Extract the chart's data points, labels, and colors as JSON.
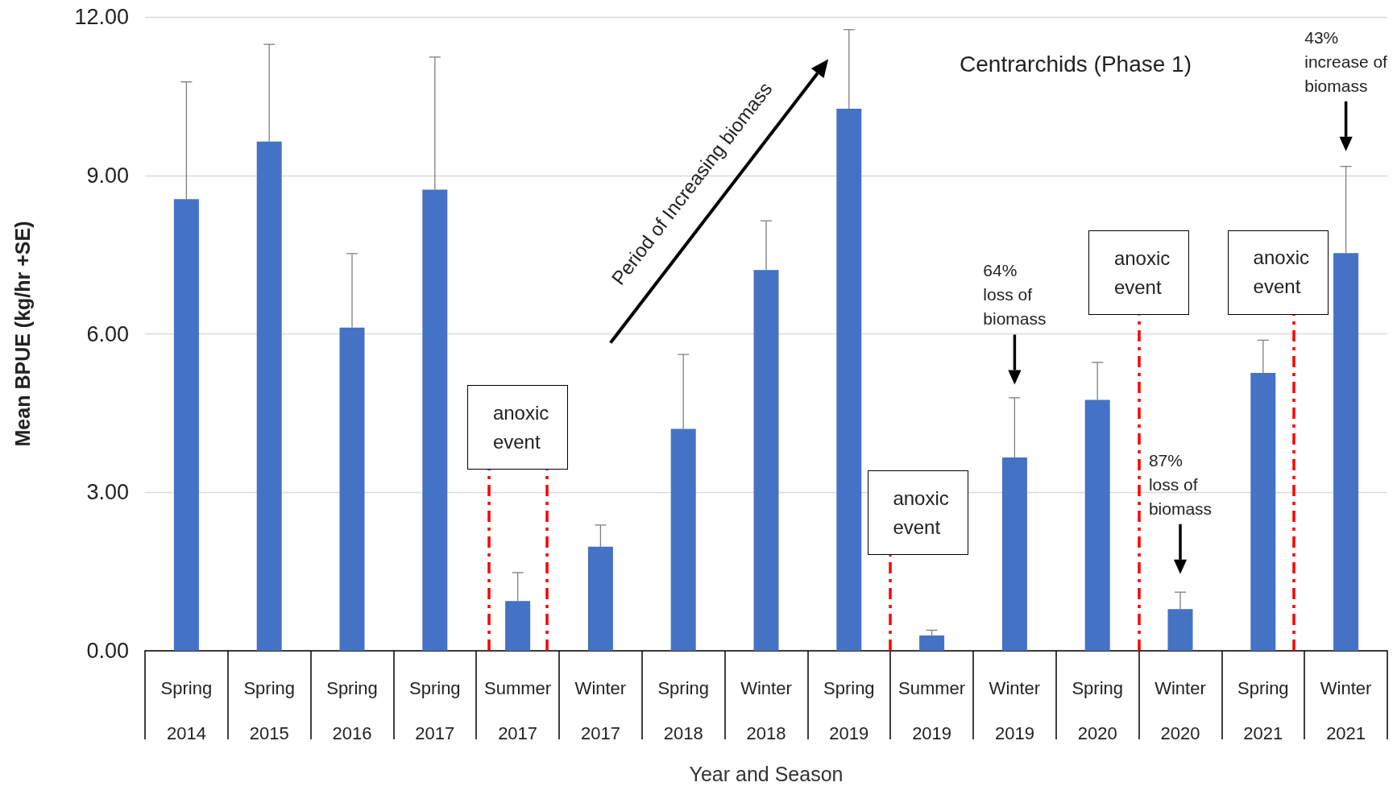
{
  "chart_data": {
    "type": "bar",
    "title": "Centrarchids (Phase 1)",
    "xlabel": "Year and Season",
    "ylabel": "Mean BPUE (kg/hr +SE)",
    "categories": [
      "Spring\n2014",
      "Spring\n2015",
      "Spring\n2016",
      "Spring\n2017",
      "Summer\n2017",
      "Winter\n2017",
      "Spring\n2018",
      "Winter\n2018",
      "Spring\n2019",
      "Summer\n2019",
      "Winter\n2019",
      "Spring\n2020",
      "Winter\n2020",
      "Spring\n2021",
      "Winter\n2021"
    ],
    "values": [
      8.55,
      9.64,
      6.12,
      8.73,
      0.94,
      1.97,
      4.2,
      7.21,
      10.26,
      0.29,
      3.66,
      4.75,
      0.79,
      5.26,
      7.53
    ],
    "errors": [
      [
        8.55,
        10.77
      ],
      [
        9.64,
        11.48
      ],
      [
        6.12,
        7.52
      ],
      [
        8.73,
        11.24
      ],
      [
        0.94,
        1.48
      ],
      [
        1.97,
        2.38
      ],
      [
        4.2,
        5.61
      ],
      [
        7.21,
        8.14
      ],
      [
        10.26,
        11.76
      ],
      [
        0.29,
        0.39
      ],
      [
        3.66,
        4.79
      ],
      [
        4.75,
        5.46
      ],
      [
        0.79,
        1.11
      ],
      [
        5.26,
        5.88
      ],
      [
        7.53,
        9.17
      ]
    ],
    "color": "#4472c4",
    "ylim": [
      0,
      12
    ],
    "yticks": [
      {
        "value": 0,
        "label": "0.00"
      },
      {
        "value": 3,
        "label": "3.00"
      },
      {
        "value": 6,
        "label": "6.00"
      },
      {
        "value": 9,
        "label": "9.00"
      },
      {
        "value": 12,
        "label": "12.00"
      }
    ],
    "grid": "y",
    "legend": false,
    "annotations": [
      "anoxic\nevent",
      "anoxic\nevent",
      "anoxic\nevent",
      "anoxic\nevent",
      "64%\nloss of\nbiomass",
      "87%\nloss of\nbiomass",
      "43%\nincrease of\nbiomass",
      "Period of Increasing biomass"
    ]
  }
}
